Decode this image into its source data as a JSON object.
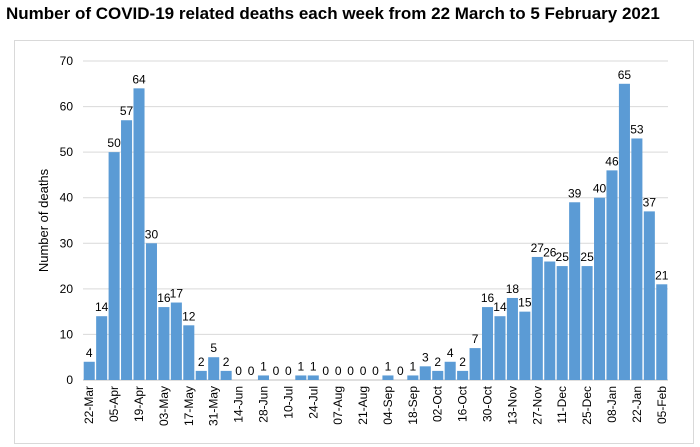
{
  "chart_data": {
    "type": "bar",
    "title": "Number of COVID-19 related deaths each week from 22 March to 5 February 2021",
    "xlabel": "",
    "ylabel": "Number of deaths",
    "ylim": [
      0,
      70
    ],
    "yticks": [
      0,
      10,
      20,
      30,
      40,
      50,
      60,
      70
    ],
    "grid": true,
    "bar_color": "#5b9bd5",
    "tick_labels": [
      "22-Mar",
      "05-Apr",
      "19-Apr",
      "03-May",
      "17-May",
      "31-May",
      "14-Jun",
      "28-Jun",
      "10-Jul",
      "24-Jul",
      "07-Aug",
      "21-Aug",
      "04-Sep",
      "18-Sep",
      "02-Oct",
      "16-Oct",
      "30-Oct",
      "13-Nov",
      "27-Nov",
      "11-Dec",
      "25-Dec",
      "08-Jan",
      "22-Jan",
      "05-Feb"
    ],
    "values": [
      4,
      14,
      50,
      57,
      64,
      30,
      16,
      17,
      12,
      2,
      5,
      2,
      0,
      0,
      1,
      0,
      0,
      1,
      1,
      0,
      0,
      0,
      0,
      0,
      1,
      0,
      1,
      3,
      2,
      4,
      2,
      7,
      16,
      14,
      18,
      15,
      27,
      26,
      25,
      39,
      25,
      40,
      46,
      65,
      53,
      37,
      21
    ]
  }
}
